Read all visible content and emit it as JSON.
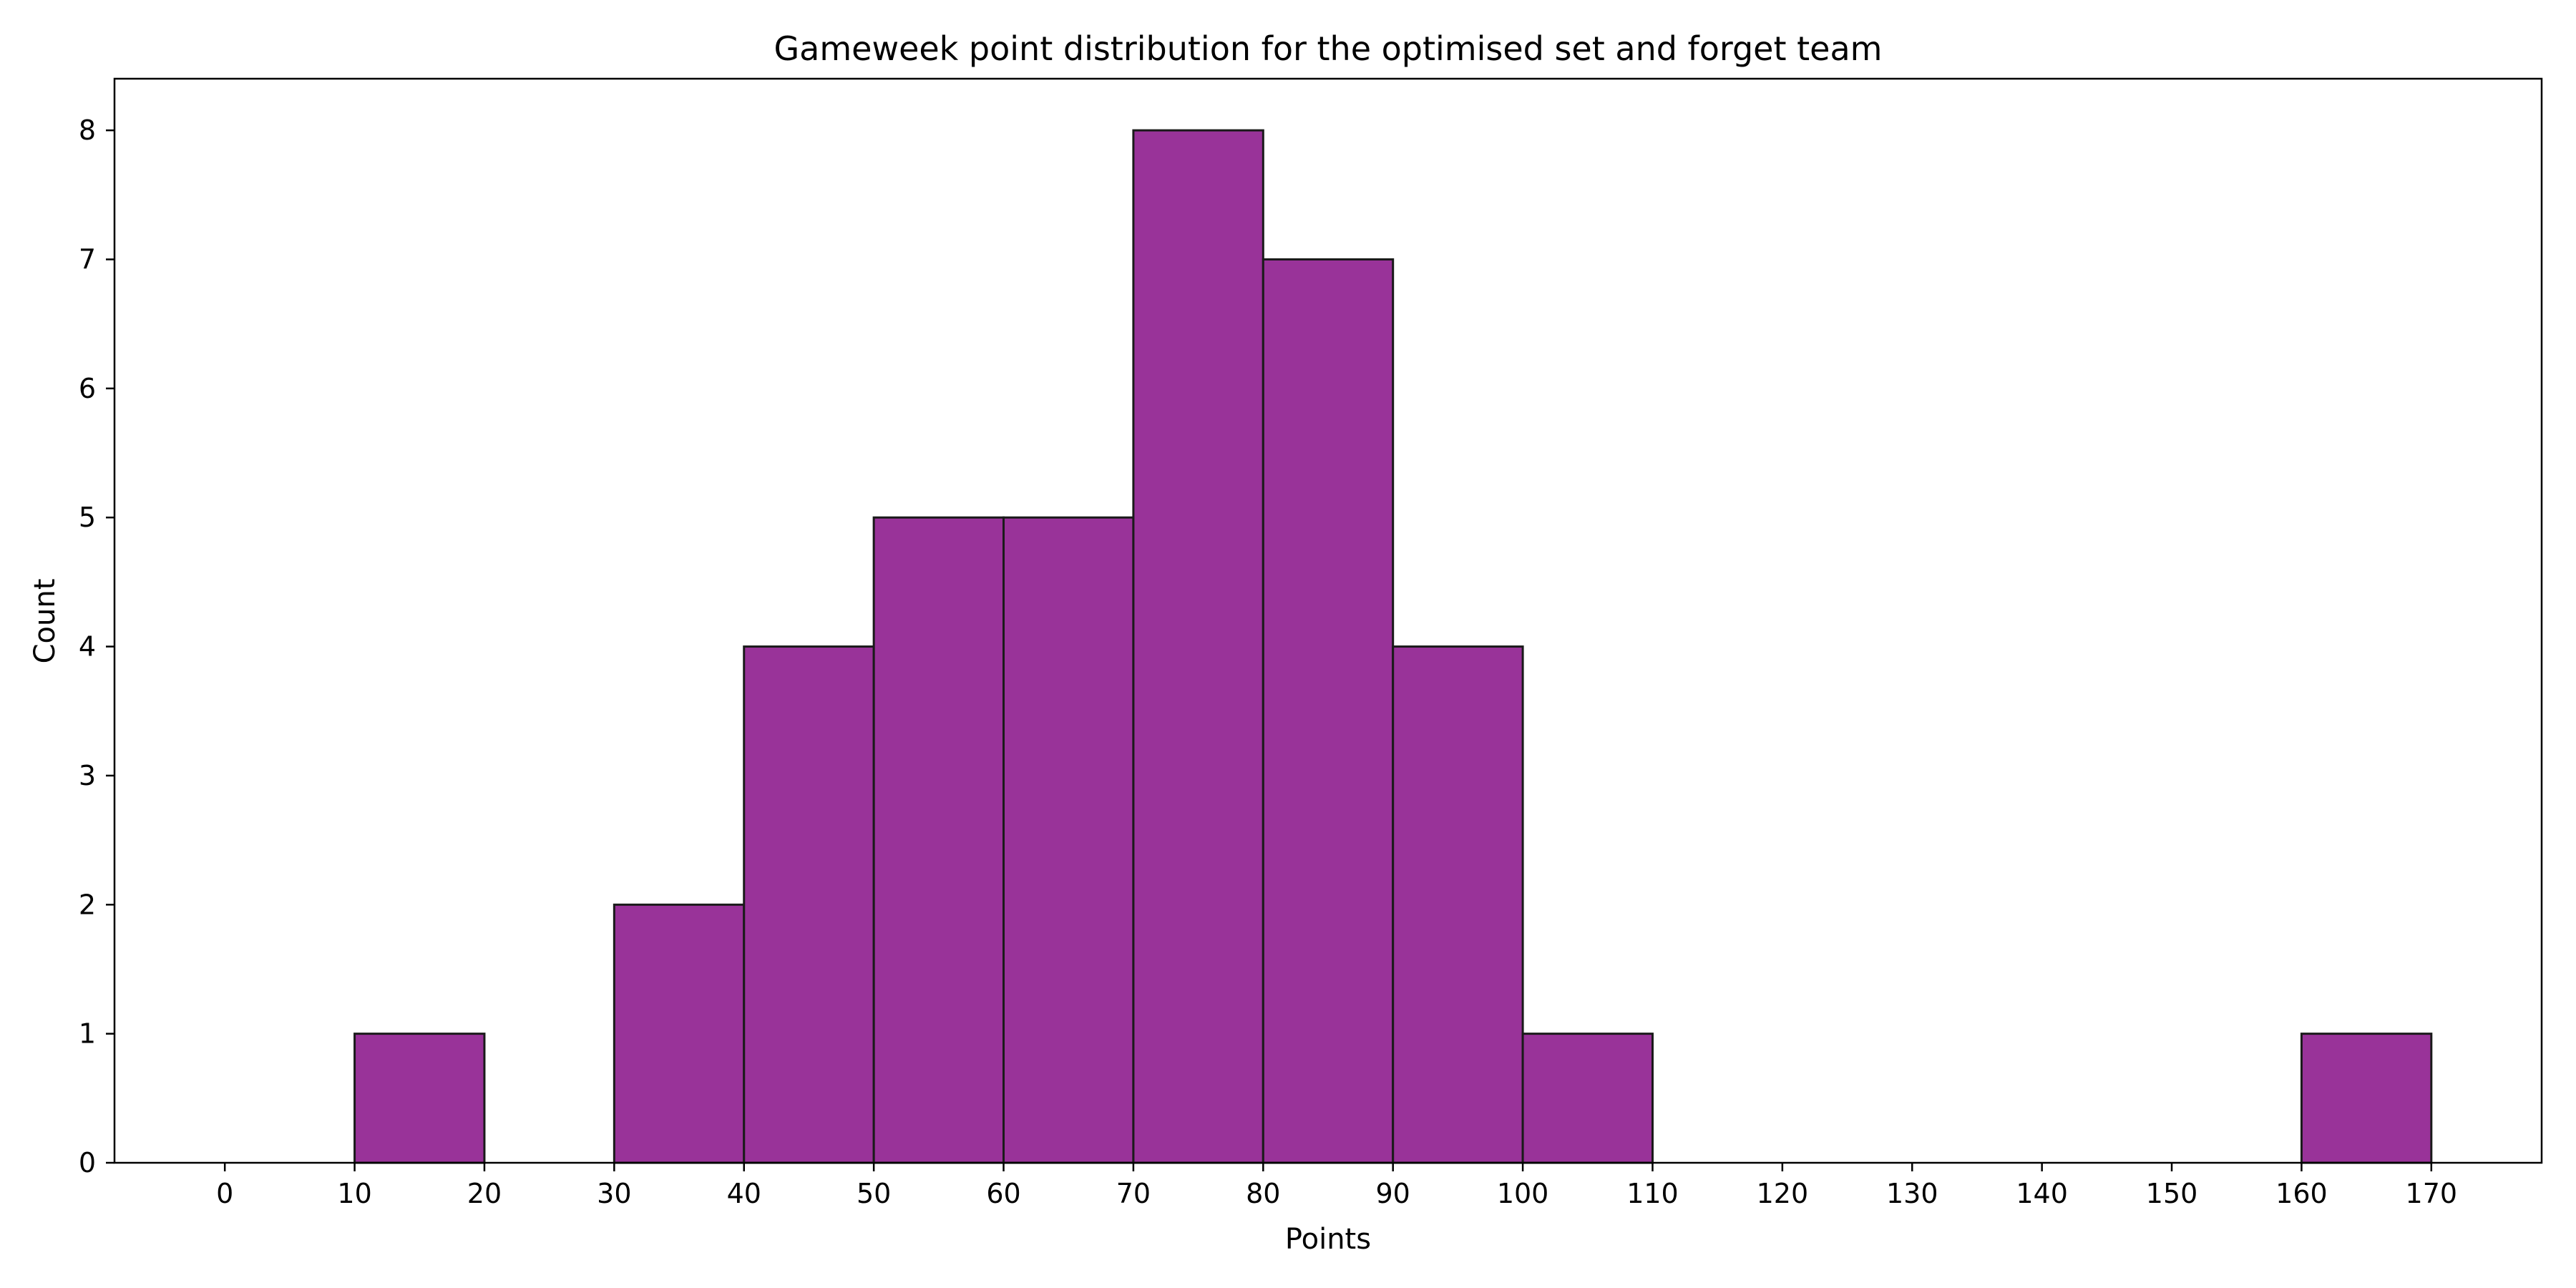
{
  "chart_data": {
    "type": "bar",
    "title": "Gameweek point distribution for the optimised set and forget team",
    "xlabel": "Points",
    "ylabel": "Count",
    "bin_edges": [
      0,
      10,
      20,
      30,
      40,
      50,
      60,
      70,
      80,
      90,
      100,
      110,
      120,
      130,
      140,
      150,
      160,
      170
    ],
    "counts": [
      0,
      1,
      0,
      2,
      4,
      5,
      5,
      8,
      7,
      4,
      1,
      0,
      0,
      0,
      0,
      0,
      1
    ],
    "xlim": [
      -8.5,
      178.5
    ],
    "ylim": [
      0,
      8.4
    ],
    "xticks": [
      0,
      10,
      20,
      30,
      40,
      50,
      60,
      70,
      80,
      90,
      100,
      110,
      120,
      130,
      140,
      150,
      160,
      170
    ],
    "yticks": [
      0,
      1,
      2,
      3,
      4,
      5,
      6,
      7,
      8
    ],
    "bar_color": "#993399",
    "edge_color": "#1a1a1a",
    "grid": false
  }
}
